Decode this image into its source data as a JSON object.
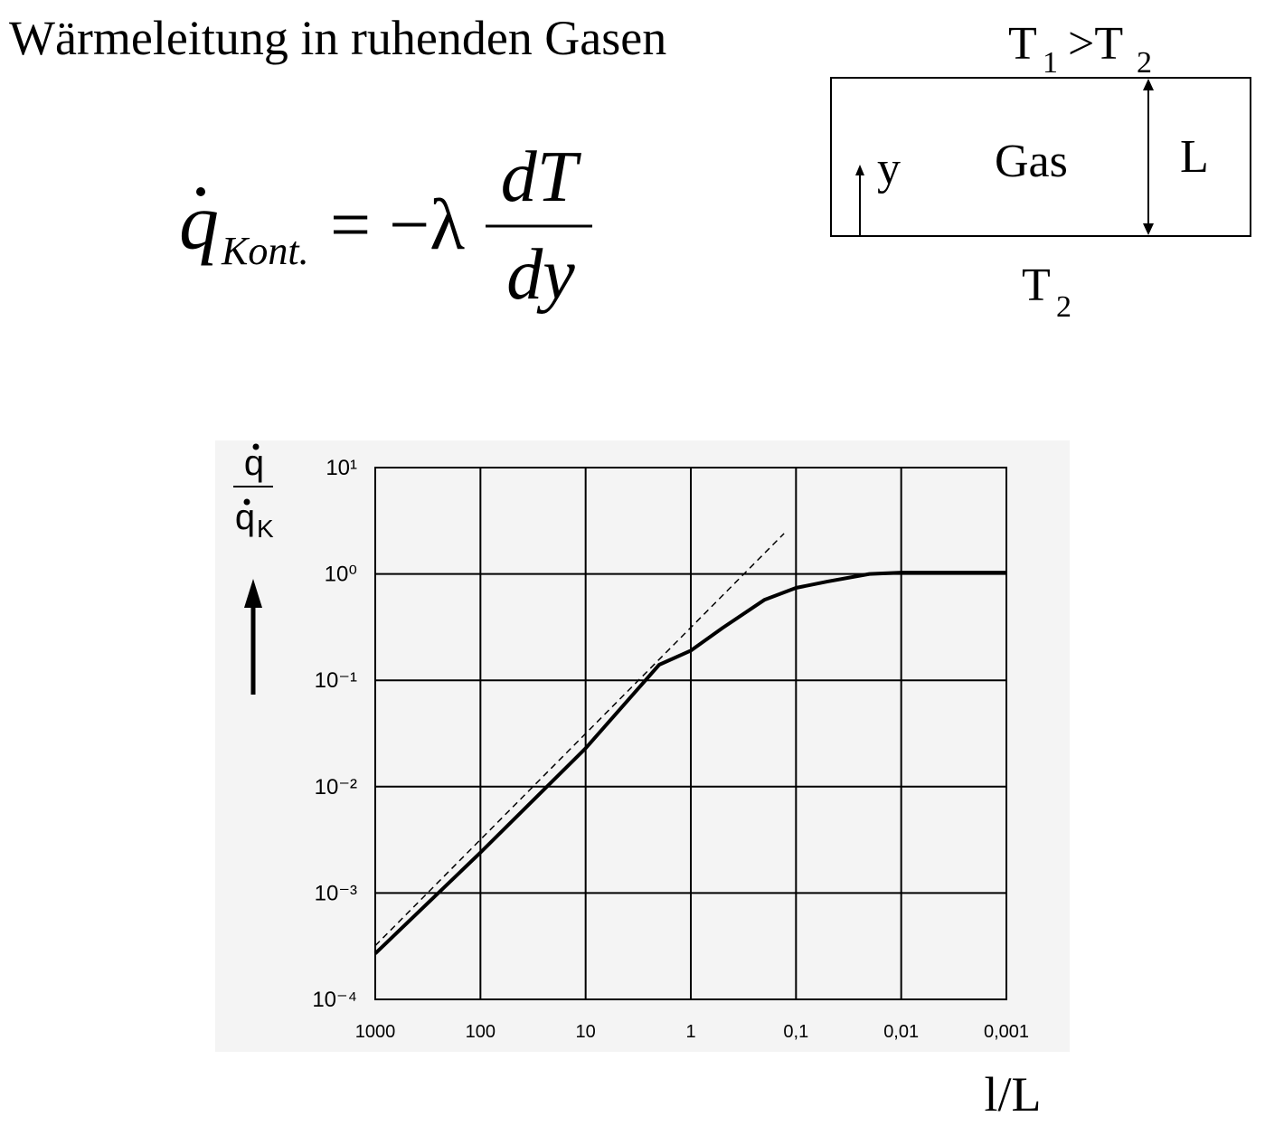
{
  "title": "Wärmeleitung in ruhenden Gasen",
  "formula": {
    "q": "q",
    "subscript": "Kont.",
    "equals": "= −λ",
    "numerator": "dT",
    "denominator": "dy"
  },
  "diagram": {
    "top": {
      "t1": "T",
      "sub1": "1",
      "gt": " >T",
      "sub2": "2"
    },
    "gas": "Gas",
    "y": "y",
    "L": "L",
    "bottom": {
      "t": "T",
      "sub": "2"
    }
  },
  "chart_data": {
    "type": "line",
    "log_x": true,
    "log_y": true,
    "grid": true,
    "ylabel": {
      "numerator": "q",
      "denominator": "q",
      "subscript": "K"
    },
    "xlabel": "l/L",
    "xlim": [
      1000,
      0.001
    ],
    "xticks": [
      1000,
      100,
      10,
      1,
      {
        "value": 0.1,
        "label": "0,1"
      },
      {
        "value": 0.01,
        "label": "0,01"
      },
      {
        "value": 0.001,
        "label": "0,001"
      }
    ],
    "ylim": [
      0.0001,
      10
    ],
    "yticks": [
      {
        "value": 10,
        "label": "10¹"
      },
      {
        "value": 1,
        "label": "10⁰"
      },
      {
        "value": 0.1,
        "label": "10⁻¹"
      },
      {
        "value": 0.01,
        "label": "10⁻²"
      },
      {
        "value": 0.001,
        "label": "10⁻³"
      },
      {
        "value": 0.0001,
        "label": "10⁻⁴"
      }
    ],
    "series": [
      {
        "color": "#000000",
        "dashed": false,
        "x": [
          1000,
          100,
          10,
          2,
          1,
          0.5,
          0.2,
          0.1,
          0.05,
          0.02,
          0.01,
          0.001
        ],
        "values": [
          0.00027,
          0.0024,
          0.023,
          0.14,
          0.19,
          0.31,
          0.57,
          0.74,
          0.85,
          1.0,
          1.03,
          1.03
        ]
      },
      {
        "color": "#000000",
        "dashed": true,
        "x": [
          1000,
          0.13
        ],
        "values": [
          0.00032,
          2.4
        ]
      }
    ]
  }
}
